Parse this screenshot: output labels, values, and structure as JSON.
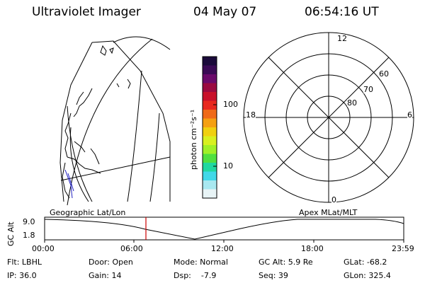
{
  "header": {
    "instrument": "Ultraviolet Imager",
    "date": "04 May 07",
    "time": "06:54:16 UT"
  },
  "colorbar": {
    "label": "photon cm⁻²s⁻¹",
    "tick_100": "100",
    "tick_10": "10",
    "colors": [
      "#1a0a3a",
      "#3a0a55",
      "#6a0a6a",
      "#9a0a40",
      "#c8102a",
      "#e8281e",
      "#f06a18",
      "#f5a012",
      "#f0d010",
      "#d8f020",
      "#a0f028",
      "#50e040",
      "#20d8a0",
      "#40d8e8",
      "#a8e8f0",
      "#e8f4f6"
    ]
  },
  "polar": {
    "mlt_labels": [
      "12",
      "18",
      "6",
      "0"
    ],
    "mlat_labels": [
      "80",
      "70",
      "60"
    ]
  },
  "timeline": {
    "left_caption": "Geographic Lat/Lon",
    "right_caption": "Apex MLat/MLT",
    "axis_label": "GC Alt",
    "y_high": "9.0",
    "y_low": "1.8",
    "x_ticks": [
      "00:00",
      "06:00",
      "12:00",
      "18:00",
      "23:59"
    ],
    "current_time_color": "#cc0000"
  },
  "footer": {
    "filter": "Flt: LBHL",
    "ip": "IP: 36.0",
    "door": "Door: Open",
    "gain": "Gain: 14",
    "mode": "Mode: Normal",
    "dsp": "Dsp:    -7.9",
    "gc_alt": "GC Alt: 5.9 Re",
    "seq": "Seq: 39",
    "glat": "GLat: -68.2",
    "glon": "GLon: 325.4"
  }
}
